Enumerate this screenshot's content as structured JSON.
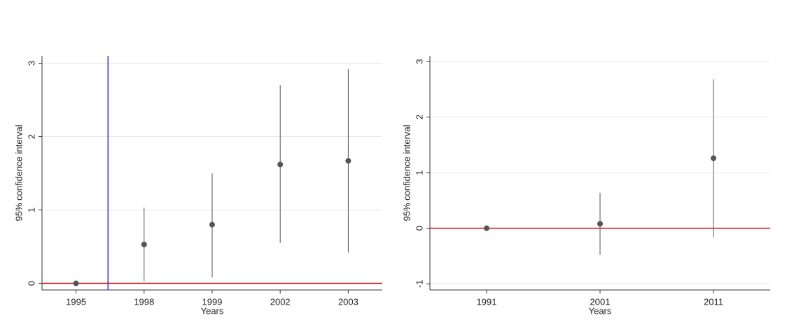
{
  "chart_data": [
    {
      "type": "coefplot",
      "x_label": "Years",
      "y_label": "95% confidence interval",
      "categories": [
        "1995",
        "1998",
        "1999",
        "2002",
        "2003"
      ],
      "values": [
        0,
        0.53,
        0.8,
        1.62,
        1.67
      ],
      "lower": [
        0,
        0.03,
        0.08,
        0.55,
        0.42
      ],
      "upper": [
        0,
        1.03,
        1.5,
        2.7,
        2.92
      ],
      "color": "#555555",
      "ylim": [
        -0.09,
        3.1
      ],
      "yticks": [
        0,
        1,
        2,
        3
      ],
      "grid": true,
      "yline": 0,
      "yline_color": "#cc1111",
      "xline": 0.97,
      "xline_color": "#3333cc"
    },
    {
      "type": "coefplot",
      "x_label": "Years",
      "y_label": "95% confidence interval",
      "categories": [
        "1991",
        "2001",
        "2011"
      ],
      "values": [
        0,
        0.08,
        1.26
      ],
      "lower": [
        0,
        -0.48,
        -0.16
      ],
      "upper": [
        0,
        0.64,
        2.68
      ],
      "color": "#555555",
      "ylim": [
        -1.11,
        3.1
      ],
      "yticks": [
        -1,
        0,
        1,
        2,
        3
      ],
      "grid": true,
      "yline": 0,
      "yline_color": "#cc1111"
    }
  ]
}
